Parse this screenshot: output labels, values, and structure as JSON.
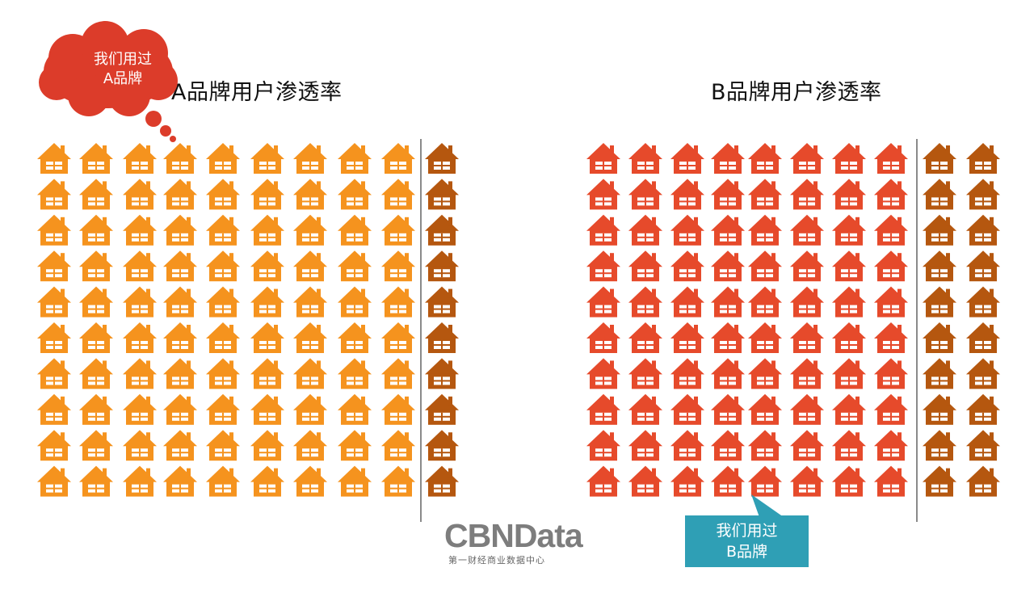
{
  "chart_data": [
    {
      "type": "icon-array",
      "title": "A品牌用户渗透率",
      "total": 100,
      "rows": 10,
      "highlighted": 90,
      "not_highlighted": 10,
      "series": [
        {
          "name": "我们用过A品牌",
          "value": 90,
          "color": "#f5931e"
        },
        {
          "value": 10,
          "color": "#b5570f"
        }
      ],
      "callout": {
        "line1": "我们用过",
        "line2": "A品牌",
        "color": "#dc3c2a"
      }
    },
    {
      "type": "icon-array",
      "title": "B品牌用户渗透率",
      "total": 100,
      "rows": 10,
      "highlighted": 80,
      "not_highlighted": 20,
      "series": [
        {
          "name": "我们用过B品牌",
          "value": 80,
          "color": "#e64a2b"
        },
        {
          "value": 20,
          "color": "#b5570f"
        }
      ],
      "callout": {
        "line1": "我们用过",
        "line2": "B品牌",
        "color": "#2f9fb5"
      }
    }
  ],
  "logo": {
    "name": "CBNData",
    "subtitle": "第一财经商业数据中心"
  },
  "colors": {
    "divider": "#8a8a8a",
    "window": "#ffffff"
  }
}
